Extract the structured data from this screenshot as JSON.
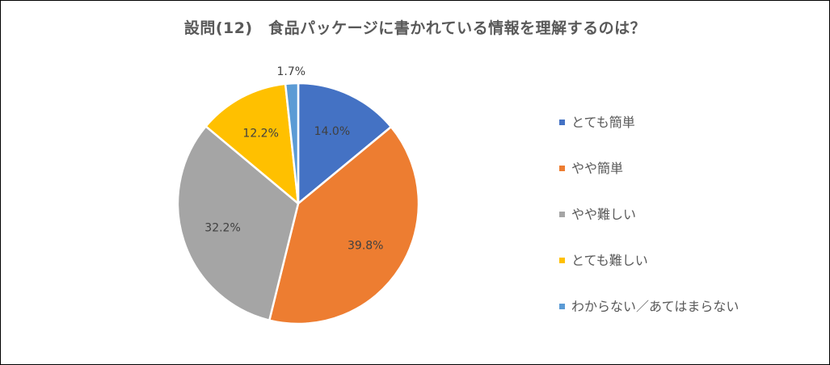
{
  "chart_data": {
    "type": "pie",
    "title": "設問(12)　食品パッケージに書かれている情報を理解するのは？",
    "categories": [
      "とても簡単",
      "やや簡単",
      "やや難しい",
      "とても難しい",
      "わからない／あてはまらない"
    ],
    "values": [
      14.0,
      39.8,
      32.2,
      12.2,
      1.7
    ],
    "data_labels": [
      "14.0%",
      "39.8%",
      "32.2%",
      "12.2%",
      "1.7%"
    ],
    "colors": [
      "#4472C4",
      "#ED7D31",
      "#A5A5A5",
      "#FFC000",
      "#5B9BD5"
    ],
    "legend_position": "right",
    "start_angle": "12 o'clock",
    "direction": "clockwise"
  }
}
